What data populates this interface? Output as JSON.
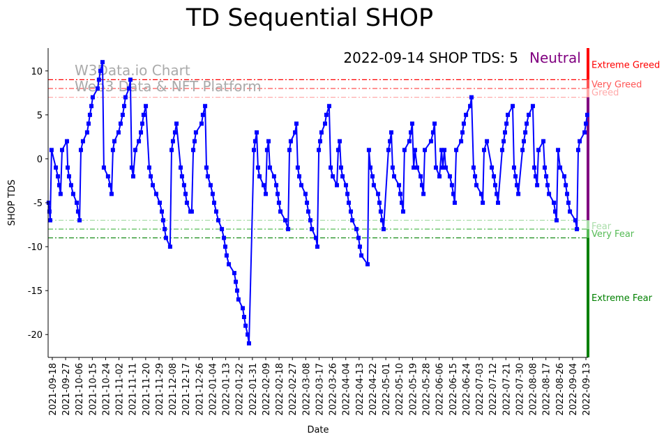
{
  "chart_data": {
    "type": "line",
    "title": "TD Sequential SHOP",
    "xlabel": "Date",
    "ylabel": "SHOP TDS",
    "x_origin_date": "2021-09-18",
    "x_unit": "days since 2021-09-18",
    "xlim": [
      -2.8,
      361.4
    ],
    "ylim": [
      -22.6,
      12.6
    ],
    "yticks": [
      10,
      5,
      0,
      -5,
      -10,
      -15,
      -20
    ],
    "xtick_labels": [
      "2021-09-18",
      "2021-09-27",
      "2021-10-06",
      "2021-10-15",
      "2021-10-24",
      "2021-11-02",
      "2021-11-11",
      "2021-11-20",
      "2021-11-29",
      "2021-12-08",
      "2021-12-17",
      "2021-12-26",
      "2022-01-04",
      "2022-01-13",
      "2022-01-22",
      "2022-01-31",
      "2022-02-09",
      "2022-02-18",
      "2022-02-27",
      "2022-03-08",
      "2022-03-17",
      "2022-03-26",
      "2022-04-04",
      "2022-04-13",
      "2022-04-22",
      "2022-05-01",
      "2022-05-10",
      "2022-05-19",
      "2022-05-28",
      "2022-06-06",
      "2022-06-15",
      "2022-06-24",
      "2022-07-03",
      "2022-07-12",
      "2022-07-21",
      "2022-07-30",
      "2022-08-08",
      "2022-08-17",
      "2022-08-26",
      "2022-09-04",
      "2022-09-13"
    ],
    "xtick_step_days": 9,
    "annotation": "2022-09-14 SHOP TDS: 5",
    "status": "Neutral",
    "status_color": "#800080",
    "watermark": [
      "W3Data.io Chart",
      "Web3 Data & NFT Platform"
    ],
    "series": [
      {
        "name": "SHOP TDS",
        "color": "#0000ff",
        "marker": "square",
        "day": [
          -2.4,
          -1.9,
          -1.4,
          -0.5,
          2.4,
          3.8,
          4.7,
          5.6,
          6.6,
          9.9,
          10.4,
          11.3,
          12.7,
          14.1,
          16.5,
          17.4,
          18.4,
          19.3,
          20.7,
          23.5,
          24.5,
          25.4,
          26.4,
          27.3,
          30.6,
          31.5,
          32.5,
          33.9,
          34.8,
          37.6,
          39.1,
          40,
          40.9,
          41.9,
          44.7,
          46.1,
          47.5,
          48.5,
          49.4,
          51.8,
          52.7,
          53.6,
          54.6,
          56,
          58.4,
          59.8,
          60.7,
          61.6,
          63.1,
          65.4,
          66.4,
          67.8,
          70.1,
          72.5,
          73.9,
          74.8,
          75.8,
          76.7,
          79.5,
          80.5,
          81.4,
          82.8,
          83.8,
          86.6,
          87.5,
          88.9,
          89.9,
          90.8,
          93.2,
          94.1,
          95.1,
          96,
          96.9,
          100.7,
          101.6,
          103.1,
          104,
          104.9,
          106.8,
          108.2,
          109.2,
          110.6,
          112,
          114.4,
          115.8,
          116.7,
          117.6,
          119.1,
          122.8,
          123.8,
          124.7,
          125.6,
          128.5,
          129.4,
          130.4,
          131.8,
          132.7,
          136,
          136.9,
          137.9,
          138.8,
          139.8,
          142.6,
          144,
          144.9,
          145.9,
          146.8,
          149.6,
          151.1,
          152,
          152.9,
          153.9,
          157.2,
          159.1,
          160,
          160.9,
          163.8,
          164.7,
          165.6,
          166.6,
          168,
          170.8,
          171.8,
          172.7,
          174.1,
          175.1,
          177.9,
          178.8,
          179.8,
          180.7,
          181.6,
          184,
          184.9,
          186.8,
          187.8,
          189.2,
          192,
          192.9,
          193.9,
          194.8,
          195.8,
          198.1,
          199.1,
          200,
          201.4,
          202.4,
          205.2,
          206.6,
          207.5,
          208.5,
          212.7,
          213.6,
          214.6,
          216,
          216.9,
          219.8,
          220.7,
          221.6,
          222.6,
          223.5,
          226.8,
          227.8,
          228.7,
          229.6,
          230.6,
          233.9,
          234.8,
          235.8,
          236.7,
          237.6,
          240.9,
          241.9,
          242.8,
          243.8,
          244.7,
          246.1,
          248.5,
          249.4,
          250.4,
          251.3,
          255.5,
          256.9,
          257.9,
          258.8,
          261.2,
          262.6,
          263.5,
          264.5,
          265.4,
          268.2,
          269.6,
          270.6,
          271.5,
          272.5,
          275.8,
          276.7,
          277.6,
          279.1,
          281.9,
          282.8,
          284.2,
          285.2,
          286.1,
          289.4,
          290.4,
          291.3,
          293.2,
          296.5,
          297.9,
          298.8,
          299.8,
          300.7,
          303.5,
          304.5,
          305.4,
          306.4,
          307.3,
          310.6,
          311.5,
          312.5,
          313.4,
          314.4,
          317.2,
          318.1,
          319.1,
          320,
          321.4,
          324.2,
          325.2,
          326.1,
          327.1,
          328,
          331.3,
          332.2,
          333.2,
          334.1,
          335.1,
          338.4,
          339.3,
          340.2,
          341.2,
          342.6,
          345.4,
          346.4,
          347.3,
          348.2,
          349.2,
          352.9,
          353.9,
          354.8,
          355.8,
          359.1,
          360,
          360.9
        ],
        "values": [
          -5,
          -6,
          -7,
          1,
          -1,
          -2,
          -3,
          -4,
          1,
          2,
          -1,
          -2,
          -3,
          -4,
          -5,
          -6,
          -7,
          1,
          2,
          3,
          4,
          5,
          6,
          7,
          8,
          9,
          10,
          11,
          -1,
          -2,
          -3,
          -4,
          1,
          2,
          3,
          4,
          5,
          6,
          7,
          8,
          9,
          -1,
          -2,
          1,
          2,
          3,
          4,
          5,
          6,
          -1,
          -2,
          -3,
          -4,
          -5,
          -6,
          -7,
          -8,
          -9,
          -10,
          1,
          2,
          3,
          4,
          -1,
          -2,
          -3,
          -4,
          -5,
          -6,
          -6,
          1,
          2,
          3,
          4,
          5,
          6,
          -1,
          -2,
          -3,
          -4,
          -5,
          -6,
          -7,
          -8,
          -9,
          -10,
          -11,
          -12,
          -13,
          -14,
          -15,
          -16,
          -17,
          -18,
          -19,
          -20,
          -21,
          1,
          2,
          3,
          -1,
          -2,
          -3,
          -4,
          1,
          2,
          -1,
          -2,
          -3,
          -4,
          -5,
          -6,
          -7,
          -8,
          1,
          2,
          3,
          4,
          -1,
          -2,
          -3,
          -4,
          -5,
          -6,
          -7,
          -8,
          -9,
          -10,
          1,
          2,
          3,
          4,
          5,
          6,
          -1,
          -2,
          -3,
          1,
          2,
          -1,
          -2,
          -3,
          -4,
          -5,
          -6,
          -7,
          -8,
          -9,
          -10,
          -11,
          -12,
          1,
          -1,
          -2,
          -3,
          -4,
          -5,
          -6,
          -7,
          -8,
          1,
          2,
          3,
          -1,
          -2,
          -3,
          -4,
          -5,
          -6,
          1,
          2,
          3,
          4,
          -1,
          1,
          -1,
          -2,
          -3,
          -4,
          1,
          2,
          3,
          4,
          -1,
          -2,
          1,
          -1,
          1,
          -1,
          -2,
          -3,
          -4,
          -5,
          1,
          2,
          3,
          4,
          5,
          6,
          7,
          -1,
          -2,
          -3,
          -4,
          -5,
          1,
          2,
          -1,
          -2,
          -3,
          -4,
          -5,
          1,
          2,
          3,
          4,
          5,
          6,
          -1,
          -2,
          -3,
          -4,
          1,
          2,
          3,
          4,
          5,
          6,
          -1,
          -2,
          -3,
          1,
          2,
          -1,
          -2,
          -3,
          -4,
          -5,
          -6,
          -7,
          1,
          -1,
          -2,
          -3,
          -4,
          -5,
          -6,
          -7,
          -8,
          1,
          2,
          3,
          4,
          5
        ]
      }
    ],
    "levels": [
      {
        "name": "Extreme Greed",
        "value": 9,
        "color": "#ff0000",
        "band": [
          9,
          12.6
        ],
        "label_at": 10.75
      },
      {
        "name": "Very Greed",
        "value": 8,
        "color": "#ff5555",
        "band": [
          8,
          9
        ],
        "label_at": 8.5
      },
      {
        "name": "Greed",
        "value": 7,
        "color": "#ffaaaa",
        "band": [
          7,
          8
        ],
        "label_at": 7.6
      },
      {
        "name": "Neutral",
        "value": null,
        "color": "#800080",
        "band": [
          -7,
          7
        ],
        "label_at": null
      },
      {
        "name": "Fear",
        "value": -7,
        "color": "#aaddaa",
        "band": [
          -8,
          -7
        ],
        "label_at": -7.6
      },
      {
        "name": "Very Fear",
        "value": -8,
        "color": "#55bb55",
        "band": [
          -9,
          -8
        ],
        "label_at": -8.5
      },
      {
        "name": "Extreme Fear",
        "value": -9,
        "color": "#008000",
        "band": [
          -22.6,
          -9
        ],
        "label_at": -15.8
      }
    ]
  }
}
